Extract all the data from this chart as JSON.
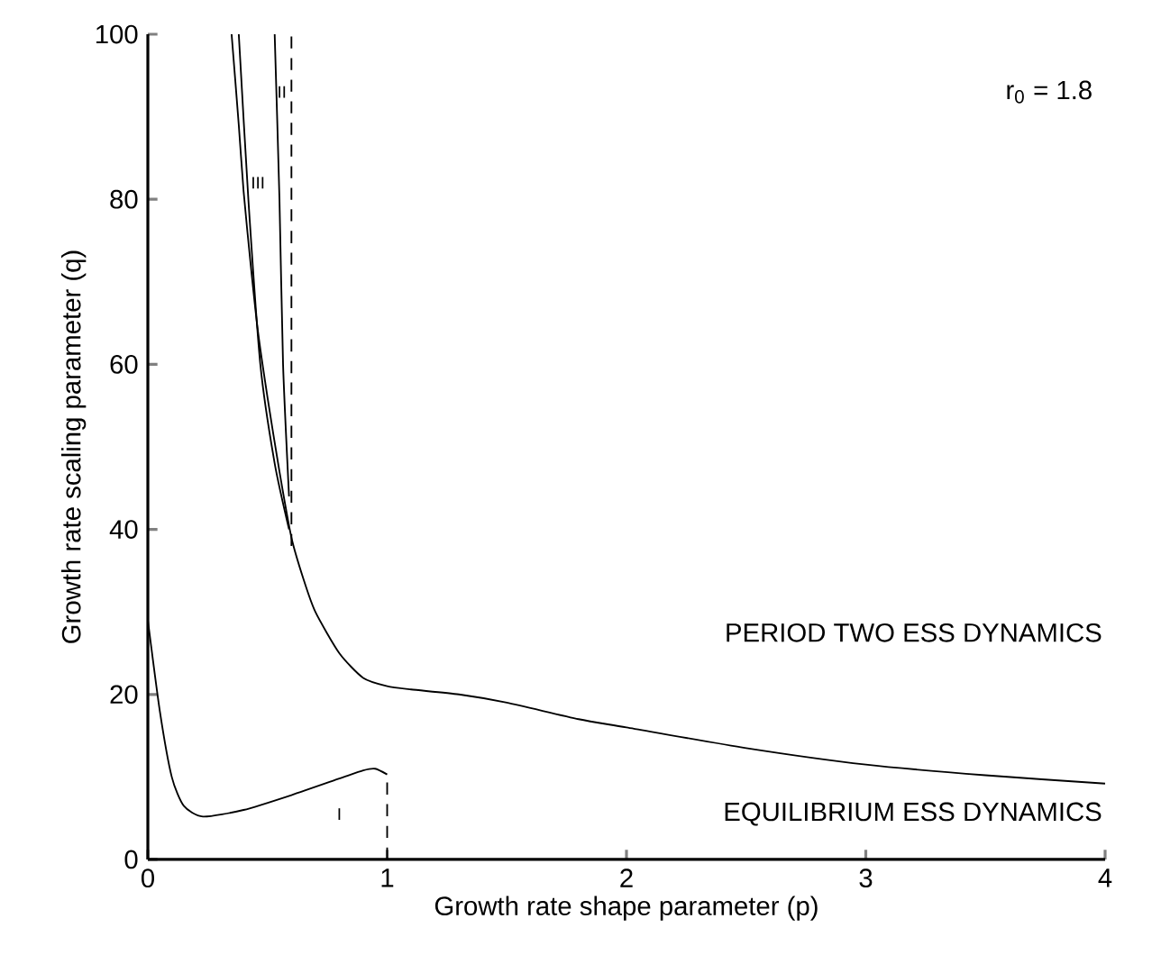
{
  "chart_data": {
    "type": "line",
    "xlabel": "Growth rate shape parameter (p)",
    "ylabel": "Growth rate scaling parameter (q)",
    "xlim": [
      0,
      4
    ],
    "ylim": [
      0,
      100
    ],
    "xticks": [
      0,
      1,
      2,
      3,
      4
    ],
    "yticks": [
      0,
      20,
      40,
      60,
      80,
      100
    ],
    "grid": false,
    "marker": "none",
    "series": [
      {
        "color": "#000000",
        "line_style": "solid",
        "x": [
          0.35,
          0.38,
          0.4,
          0.43,
          0.46,
          0.5,
          0.55,
          0.6,
          0.65,
          0.7,
          0.8,
          0.9,
          1.0,
          1.1,
          1.3,
          1.5,
          1.8,
          2.0,
          2.5,
          3.0,
          3.5,
          4.0
        ],
        "values": [
          100,
          89,
          81,
          72,
          64,
          56,
          47,
          39,
          34,
          30,
          25,
          22,
          21,
          20.6,
          20,
          19,
          17,
          16,
          13.5,
          11.5,
          10.2,
          9.2
        ]
      },
      {
        "color": "#000000",
        "line_style": "solid",
        "x": [
          0.38,
          0.42,
          0.47,
          0.53,
          0.59
        ],
        "values": [
          100,
          80,
          60,
          48,
          40
        ]
      },
      {
        "color": "#000000",
        "line_style": "solid",
        "x": [
          0.53,
          0.55,
          0.565,
          0.59
        ],
        "values": [
          100,
          80,
          60,
          44
        ]
      },
      {
        "color": "#000000",
        "line_style": "dashed",
        "x": [
          0.6,
          0.6
        ],
        "values": [
          38,
          100
        ]
      },
      {
        "color": "#000000",
        "line_style": "solid",
        "x": [
          0,
          0.05,
          0.1,
          0.15,
          0.23,
          0.4,
          0.6,
          0.8,
          0.9,
          0.95,
          1.0
        ],
        "values": [
          29,
          18,
          10,
          6.5,
          5.2,
          6,
          7.8,
          9.8,
          10.8,
          11,
          10.3
        ]
      },
      {
        "color": "#000000",
        "line_style": "dashed",
        "x": [
          1.0,
          1.0
        ],
        "values": [
          0,
          10.3
        ]
      }
    ],
    "annotations": [
      "r$_{0}$ = 1.8",
      "PERIOD TWO ESS DYNAMICS",
      "EQUILIBRIUM ESS DYNAMICS",
      "I",
      "III",
      "II"
    ]
  }
}
